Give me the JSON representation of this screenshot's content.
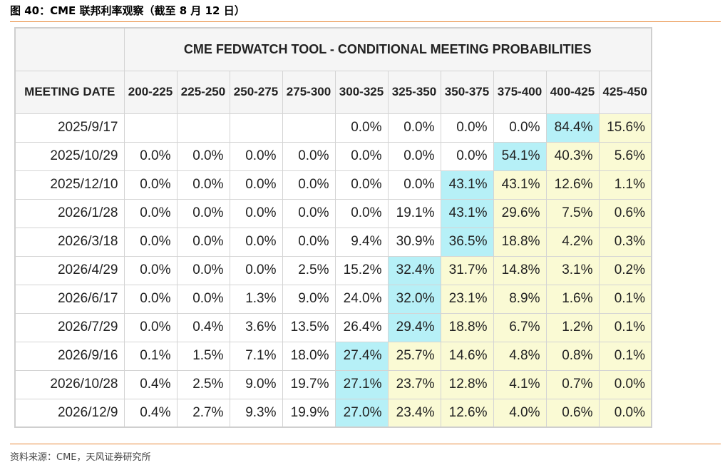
{
  "caption": "图 40：CME 联邦利率观察（截至 8 月 12 日）",
  "table": {
    "header": "CME FEDWATCH TOOL - CONDITIONAL MEETING PROBABILITIES",
    "columns": [
      "MEETING DATE",
      "200-225",
      "225-250",
      "250-275",
      "275-300",
      "300-325",
      "325-350",
      "350-375",
      "375-400",
      "400-425",
      "425-450"
    ],
    "rows": [
      [
        "2025/9/17",
        null,
        null,
        null,
        null,
        "0.0%",
        "0.0%",
        "0.0%",
        "0.0%",
        "84.4%",
        "15.6%"
      ],
      [
        "2025/10/29",
        "0.0%",
        "0.0%",
        "0.0%",
        "0.0%",
        "0.0%",
        "0.0%",
        "0.0%",
        "54.1%",
        "40.3%",
        "5.6%"
      ],
      [
        "2025/12/10",
        "0.0%",
        "0.0%",
        "0.0%",
        "0.0%",
        "0.0%",
        "0.0%",
        "43.1%",
        "43.1%",
        "12.6%",
        "1.1%"
      ],
      [
        "2026/1/28",
        "0.0%",
        "0.0%",
        "0.0%",
        "0.0%",
        "0.0%",
        "19.1%",
        "43.1%",
        "29.6%",
        "7.5%",
        "0.6%"
      ],
      [
        "2026/3/18",
        "0.0%",
        "0.0%",
        "0.0%",
        "0.0%",
        "9.4%",
        "30.9%",
        "36.5%",
        "18.8%",
        "4.2%",
        "0.3%"
      ],
      [
        "2026/4/29",
        "0.0%",
        "0.0%",
        "0.0%",
        "2.5%",
        "15.2%",
        "32.4%",
        "31.7%",
        "14.8%",
        "3.1%",
        "0.2%"
      ],
      [
        "2026/6/17",
        "0.0%",
        "0.0%",
        "1.3%",
        "9.0%",
        "24.0%",
        "32.0%",
        "23.1%",
        "8.9%",
        "1.6%",
        "0.1%"
      ],
      [
        "2026/7/29",
        "0.0%",
        "0.4%",
        "3.6%",
        "13.5%",
        "26.4%",
        "29.4%",
        "18.8%",
        "6.7%",
        "1.2%",
        "0.1%"
      ],
      [
        "2026/9/16",
        "0.1%",
        "1.5%",
        "7.1%",
        "18.0%",
        "27.4%",
        "25.7%",
        "14.6%",
        "4.8%",
        "0.8%",
        "0.1%"
      ],
      [
        "2026/10/28",
        "0.4%",
        "2.5%",
        "9.0%",
        "19.7%",
        "27.1%",
        "23.7%",
        "12.8%",
        "4.1%",
        "0.7%",
        "0.0%"
      ],
      [
        "2026/12/9",
        "0.4%",
        "2.7%",
        "9.3%",
        "19.9%",
        "27.0%",
        "23.4%",
        "12.6%",
        "4.0%",
        "0.6%",
        "0.0%"
      ]
    ],
    "highlight_color": "#b6f0f7",
    "after_color": "#fafad4"
  },
  "source": "资料来源：CME，天风证券研究所"
}
